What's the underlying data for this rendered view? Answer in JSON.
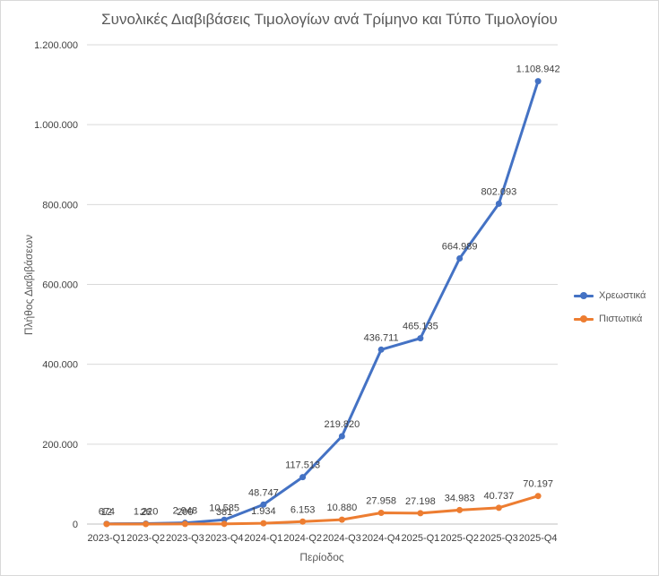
{
  "chart_data": {
    "type": "line",
    "title": "Συνολικές Διαβιβάσεις Τιμολογίων ανά Τρίμηνο και Τύπο Τιμολογίου",
    "xlabel": "Περίοδος",
    "ylabel": "Πλήθος Διαβιβάσεων",
    "ylim": [
      0,
      1200000
    ],
    "yticks": [
      0,
      200000,
      400000,
      600000,
      800000,
      1000000,
      1200000
    ],
    "ytick_labels": [
      "0",
      "200.000",
      "400.000",
      "600.000",
      "800.000",
      "1.000.000",
      "1.200.000"
    ],
    "grid": true,
    "legend_position": "right",
    "categories": [
      "2023-Q1",
      "2023-Q2",
      "2023-Q3",
      "2023-Q4",
      "2024-Q1",
      "2024-Q2",
      "2024-Q3",
      "2024-Q4",
      "2025-Q1",
      "2025-Q2",
      "2025-Q3",
      "2025-Q4"
    ],
    "series": [
      {
        "name": "Χρεωστικά",
        "color": "#4472c4",
        "values": [
          674,
          1220,
          2948,
          10585,
          48747,
          117513,
          219820,
          436711,
          465135,
          664989,
          802093,
          1108942
        ],
        "labels": [
          "674",
          "1.220",
          "2.948",
          "10.585",
          "48.747",
          "117.513",
          "219.820",
          "436.711",
          "465.135",
          "664.989",
          "802.093",
          "1.108.942"
        ]
      },
      {
        "name": "Πιστωτικά",
        "color": "#ed7d31",
        "values": [
          12,
          26,
          200,
          381,
          1934,
          6153,
          10880,
          27958,
          27198,
          34983,
          40737,
          70197
        ],
        "labels": [
          "12",
          "26",
          "200",
          "381",
          "1.934",
          "6.153",
          "10.880",
          "27.958",
          "27.198",
          "34.983",
          "40.737",
          "70.197"
        ]
      }
    ]
  }
}
